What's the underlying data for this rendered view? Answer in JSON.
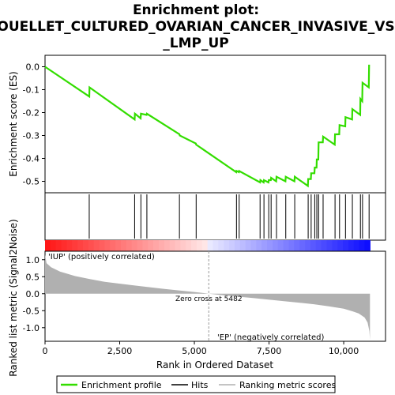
{
  "title_lines": [
    "Enrichment plot:",
    "OUELLET_CULTURED_OVARIAN_CANCER_INVASIVE_VS",
    "_LMP_UP"
  ],
  "colors": {
    "es_line": "#33dd00",
    "hits": "#000000",
    "metric_fill": "#b0b0b0",
    "pos_label": "#cc0000",
    "neg_label": "#0000cc",
    "zero_line": "#999999"
  },
  "chart_data": [
    {
      "type": "line",
      "panel": "enrichment-score",
      "ylabel": "Enrichment score (ES)",
      "ylim": [
        -0.55,
        0.05
      ],
      "yticks": [
        0.0,
        -0.1,
        -0.2,
        -0.3,
        -0.4,
        -0.5
      ],
      "ytick_labels": [
        "0.0",
        "-0.1",
        "-0.2",
        "-0.3",
        "-0.4",
        "-0.5"
      ],
      "xlim": [
        0,
        11400
      ],
      "series": [
        {
          "name": "Enrichment profile",
          "x": [
            0,
            1480,
            1490,
            3000,
            3010,
            3200,
            3210,
            3400,
            3410,
            4500,
            4510,
            5050,
            5060,
            6400,
            6410,
            6490,
            6500,
            7200,
            7210,
            7320,
            7330,
            7480,
            7490,
            7560,
            7570,
            7740,
            7750,
            8050,
            8060,
            8350,
            8360,
            8800,
            8810,
            8900,
            8910,
            9020,
            9030,
            9090,
            9100,
            9150,
            9160,
            9300,
            9310,
            9700,
            9710,
            9850,
            9860,
            10050,
            10060,
            10280,
            10290,
            10550,
            10560,
            10620,
            10630,
            10840,
            10850,
            10880
          ],
          "y": [
            0.0,
            -0.13,
            -0.09,
            -0.23,
            -0.205,
            -0.225,
            -0.205,
            -0.21,
            -0.205,
            -0.295,
            -0.3,
            -0.335,
            -0.34,
            -0.46,
            -0.455,
            -0.46,
            -0.455,
            -0.505,
            -0.495,
            -0.505,
            -0.495,
            -0.505,
            -0.495,
            -0.495,
            -0.485,
            -0.5,
            -0.48,
            -0.5,
            -0.48,
            -0.5,
            -0.48,
            -0.52,
            -0.49,
            -0.49,
            -0.465,
            -0.465,
            -0.44,
            -0.44,
            -0.405,
            -0.405,
            -0.33,
            -0.33,
            -0.305,
            -0.34,
            -0.295,
            -0.295,
            -0.255,
            -0.26,
            -0.22,
            -0.23,
            -0.185,
            -0.21,
            -0.14,
            -0.15,
            -0.07,
            -0.09,
            0.005,
            0.005
          ]
        }
      ]
    },
    {
      "type": "scatter",
      "panel": "hits",
      "series": [
        {
          "name": "Hits",
          "x": [
            1480,
            3000,
            3210,
            3410,
            4500,
            5060,
            6410,
            6500,
            7200,
            7330,
            7490,
            7570,
            7750,
            8060,
            8360,
            8810,
            8910,
            9030,
            9100,
            9160,
            9310,
            9710,
            9860,
            10060,
            10290,
            10560,
            10630,
            10850
          ]
        }
      ]
    },
    {
      "type": "area",
      "panel": "ranked-metric",
      "ylabel": "Ranked list metric (Signal2Noise)",
      "xlabel": "Rank in Ordered Dataset",
      "ylim": [
        -1.4,
        1.25
      ],
      "yticks": [
        1.0,
        0.5,
        0.0,
        -0.5,
        -1.0
      ],
      "ytick_labels": [
        "1.0",
        "0.5",
        "0.0",
        "-0.5",
        "-1.0"
      ],
      "xlim": [
        0,
        11400
      ],
      "xticks": [
        0,
        2500,
        5000,
        7500,
        10000
      ],
      "xtick_labels": [
        "0",
        "2,500",
        "5,000",
        "7,500",
        "10,000"
      ],
      "x": [
        0,
        50,
        200,
        500,
        1000,
        1500,
        2000,
        3000,
        4000,
        5000,
        5482,
        6000,
        7000,
        8000,
        9000,
        9500,
        10000,
        10300,
        10500,
        10700,
        10800,
        10860,
        10880
      ],
      "values": [
        1.15,
        0.9,
        0.78,
        0.65,
        0.52,
        0.43,
        0.35,
        0.24,
        0.14,
        0.05,
        0.0,
        -0.05,
        -0.13,
        -0.22,
        -0.31,
        -0.37,
        -0.44,
        -0.52,
        -0.58,
        -0.7,
        -0.85,
        -1.1,
        -1.35
      ],
      "zero_cross": 5482,
      "zero_cross_label": "Zero cross at 5482",
      "pos_label": "'IUP' (positively correlated)",
      "neg_label": "'EP' (negatively correlated)"
    }
  ],
  "legend": {
    "items": [
      {
        "label": "Enrichment profile",
        "color": "#33dd00"
      },
      {
        "label": "Hits",
        "color": "#000000"
      },
      {
        "label": "Ranking metric scores",
        "color": "#b0b0b0"
      }
    ]
  }
}
